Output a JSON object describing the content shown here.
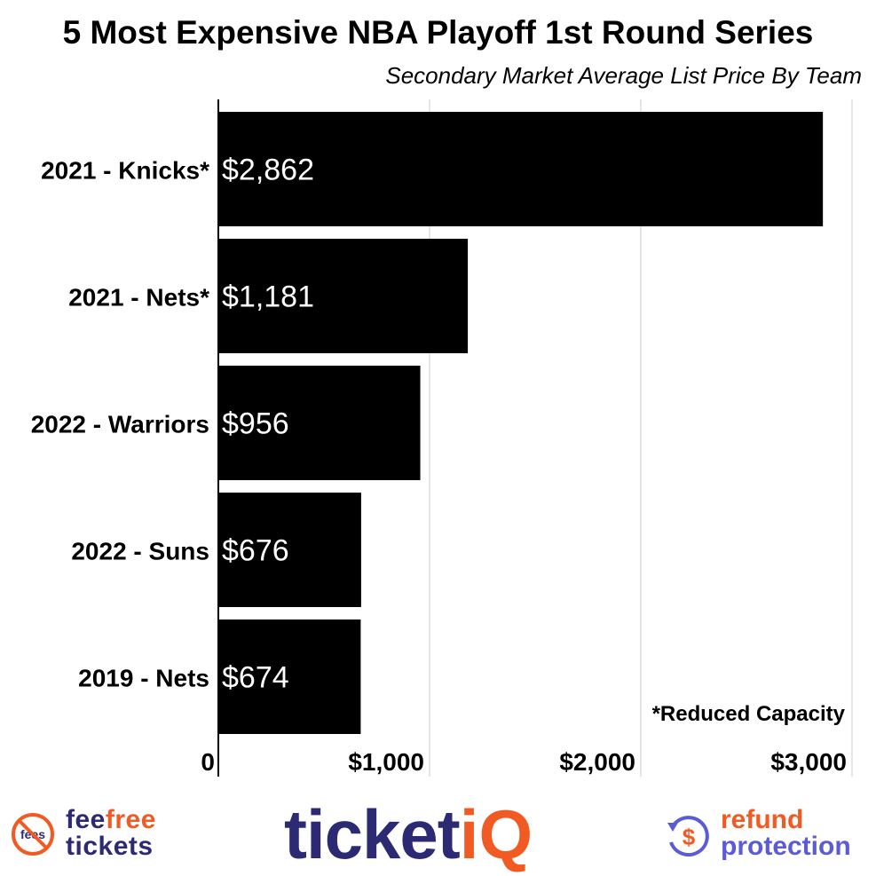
{
  "header": {
    "title": "5 Most Expensive NBA Playoff 1st Round Series",
    "subtitle": "Secondary Market Average List Price By Team"
  },
  "chart_data": {
    "type": "bar",
    "orientation": "horizontal",
    "categories": [
      "2021 - Knicks*",
      "2021 - Nets*",
      "2022 - Warriors",
      "2022 - Suns",
      "2019 - Nets"
    ],
    "values": [
      2862,
      1181,
      956,
      676,
      674
    ],
    "value_labels": [
      "$2,862",
      "$1,181",
      "$956",
      "$676",
      "$674"
    ],
    "x_ticks": [
      0,
      1000,
      2000,
      3000
    ],
    "x_tick_labels": [
      "0",
      "$1,000",
      "$2,000",
      "$3,000"
    ],
    "xlim": [
      0,
      3000
    ],
    "grid": true,
    "bar_color": "#000000",
    "annotation": "*Reduced Capacity"
  },
  "footer": {
    "feefree": {
      "word1": "fee",
      "word2": "free",
      "line2": "tickets",
      "badge_text": "fees"
    },
    "brand": {
      "main": "ticket",
      "accent": "i",
      "accent2": "Q"
    },
    "refund": {
      "line1": "refund",
      "line2": "protection",
      "icon_symbol": "$"
    }
  },
  "colors": {
    "navy": "#2c2a73",
    "orange": "#f15a22",
    "purple": "#5b5bd6",
    "grid": "#cccccc"
  }
}
